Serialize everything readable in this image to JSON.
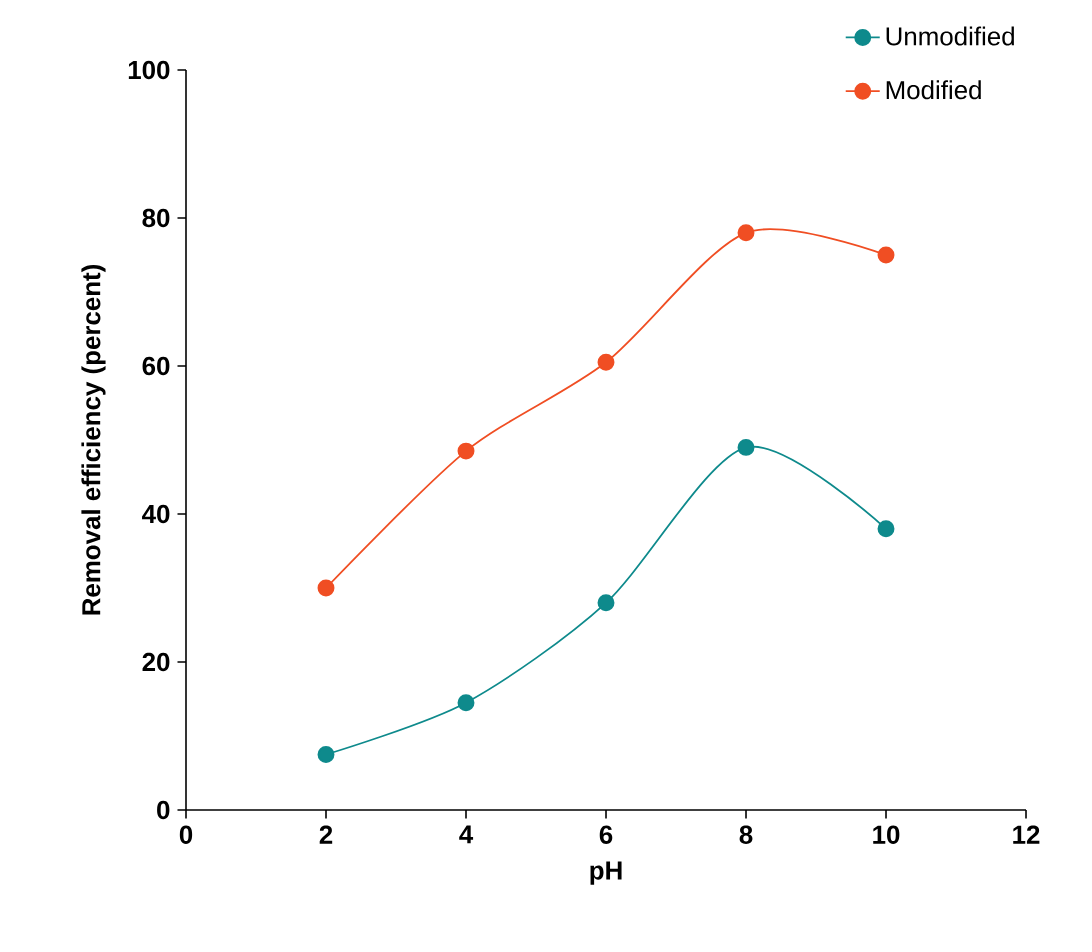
{
  "chart_data": {
    "type": "line",
    "xlabel": "pH",
    "ylabel": "Removal efficiency (percent)",
    "x": [
      2,
      4,
      6,
      8,
      10
    ],
    "series": [
      {
        "name": "Unmodified",
        "color": "#0e8a8c",
        "values": [
          7.5,
          14.5,
          28,
          49,
          38
        ]
      },
      {
        "name": "Modified",
        "color": "#f04e23",
        "values": [
          30,
          48.5,
          60.5,
          78,
          75
        ]
      }
    ],
    "xlim": [
      0,
      12
    ],
    "xticks": [
      0,
      2,
      4,
      6,
      8,
      10,
      12
    ],
    "ylim": [
      0,
      100
    ],
    "yticks": [
      0,
      20,
      40,
      60,
      80,
      100
    ],
    "grid": false,
    "legend": "top right",
    "marker": "circle",
    "line_style": "solid"
  }
}
